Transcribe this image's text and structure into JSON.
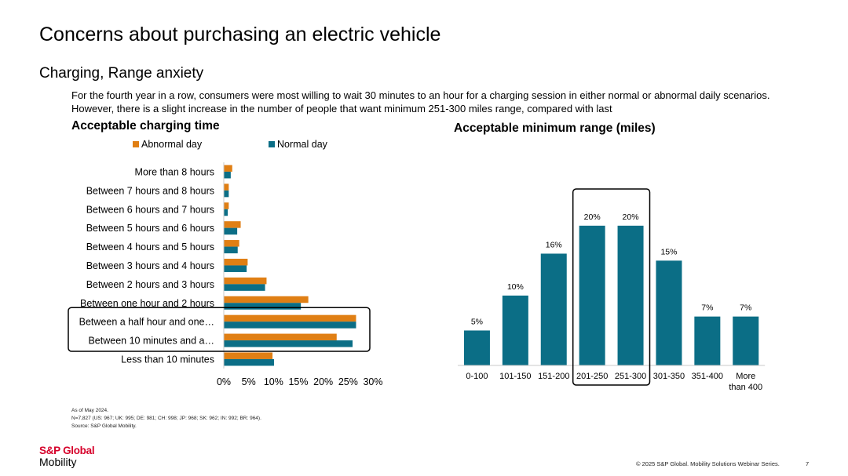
{
  "slide": {
    "title": "Concerns about purchasing an electric vehicle",
    "subtitle": "Charging, Range anxiety",
    "intro": "For the fourth year in a row, consumers were most willing to wait 30 minutes to an hour for a charging session in either normal or abnormal daily scenarios. However, there is a slight increase in the number of people that want minimum 251-300 miles range, compared with last",
    "notes": [
      "As of May 2024.",
      "N=7,827 (US: 967; UK: 995; DE: 981; CH: 998; JP: 968; SK: 962; IN: 992; BR: 964).",
      "Source: S&P Global Mobility."
    ],
    "logo_line1": "S&P Global",
    "logo_line2": "Mobility",
    "footer": "© 2025 S&P Global. Mobility Solutions Webinar Series.",
    "page_number": "7"
  },
  "colors": {
    "abnormal": "#e07f14",
    "normal": "#0b6e86",
    "highlight_box": "#000000"
  },
  "chart_data": [
    {
      "type": "bar",
      "orientation": "horizontal",
      "title": "Acceptable charging time",
      "categories": [
        "More than 8 hours",
        "Between 7 hours and 8 hours",
        "Between 6 hours and 7 hours",
        "Between 5 hours and 6 hours",
        "Between 4 hours and 5 hours",
        "Between 3 hours and 4 hours",
        "Between 2 hours and 3 hours",
        "Between one hour and 2 hours",
        "Between a half hour and one…",
        "Between 10 minutes and a…",
        "Less than 10 minutes"
      ],
      "series": [
        {
          "name": "Abnormal day",
          "values": [
            1.7,
            1.0,
            1.0,
            3.4,
            3.1,
            4.8,
            8.6,
            17.0,
            26.6,
            22.7,
            9.8
          ]
        },
        {
          "name": "Normal day",
          "values": [
            1.4,
            1.0,
            0.8,
            2.7,
            2.8,
            4.6,
            8.3,
            15.5,
            26.6,
            25.9,
            10.1
          ]
        }
      ],
      "xlim": [
        0,
        30
      ],
      "x_ticks": [
        "0%",
        "5%",
        "10%",
        "15%",
        "20%",
        "25%",
        "30%"
      ],
      "legend": "top",
      "highlighted_categories": [
        "Between a half hour and one…",
        "Between 10 minutes and a…"
      ]
    },
    {
      "type": "bar",
      "title": "Acceptable minimum range (miles)",
      "categories": [
        "0-100",
        "101-150",
        "151-200",
        "201-250",
        "251-300",
        "301-350",
        "351-400",
        "More than 400"
      ],
      "values": [
        5,
        10,
        16,
        20,
        20,
        15,
        7,
        7
      ],
      "data_labels": [
        "5%",
        "10%",
        "16%",
        "20%",
        "20%",
        "15%",
        "7%",
        "7%"
      ],
      "ylim": [
        0,
        22
      ],
      "highlighted_categories": [
        "201-250",
        "251-300"
      ]
    }
  ]
}
